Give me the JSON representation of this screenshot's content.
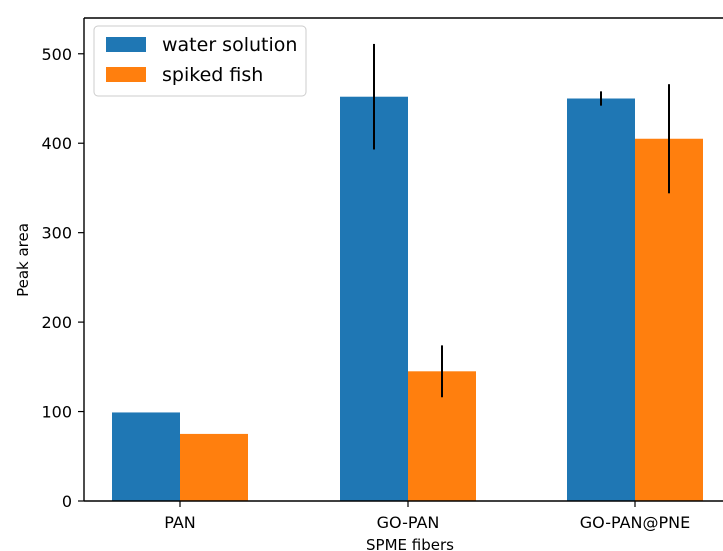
{
  "chart_data": {
    "type": "bar",
    "categories": [
      "PAN",
      "GO-PAN",
      "GO-PAN@PNE"
    ],
    "series": [
      {
        "name": "water solution",
        "color": "#1f77b4",
        "values": [
          99,
          452,
          450
        ],
        "errors": [
          null,
          59,
          8
        ]
      },
      {
        "name": "spiked fish",
        "color": "#ff7f0e",
        "values": [
          75,
          145,
          405
        ],
        "errors": [
          null,
          29,
          61
        ]
      }
    ],
    "xlabel": "SPME fibers",
    "ylabel": "Peak area",
    "ylim": [
      0,
      540
    ],
    "yticks": [
      0,
      100,
      200,
      300,
      400,
      500
    ],
    "grid": false,
    "legend_position": "top-left"
  }
}
